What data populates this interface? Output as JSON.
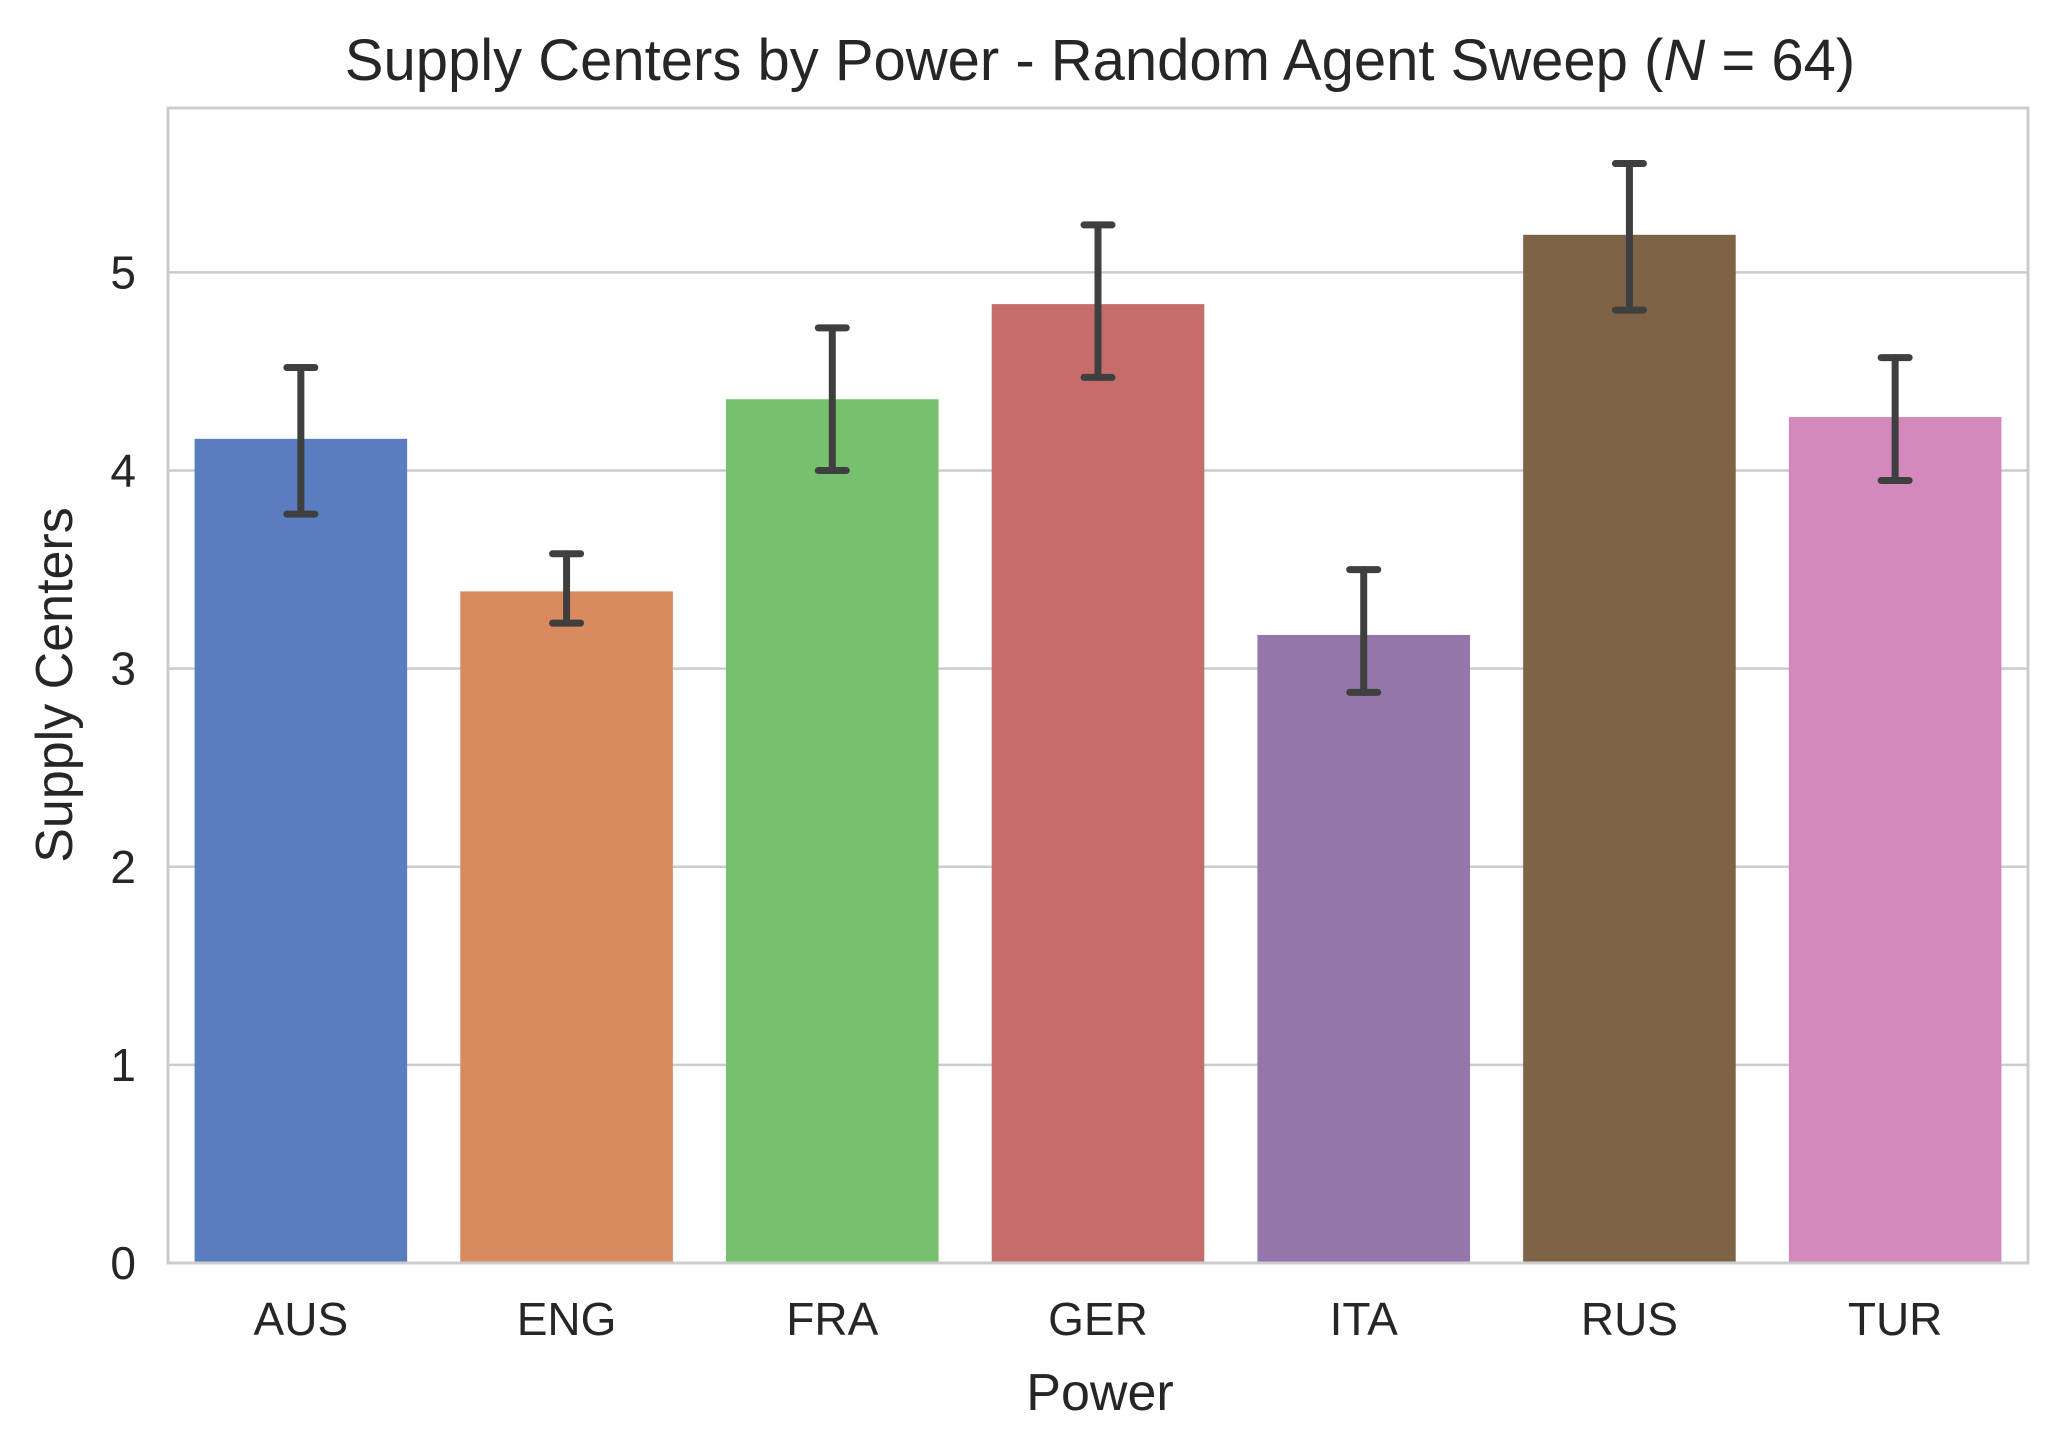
{
  "chart_data": {
    "type": "bar",
    "title_prefix": "Supply Centers by Power - Random Agent Sweep (",
    "title_var": "N",
    "title_rel": " = 64)",
    "xlabel": "Power",
    "ylabel": "Supply Centers",
    "categories": [
      "AUS",
      "ENG",
      "FRA",
      "GER",
      "ITA",
      "RUS",
      "TUR"
    ],
    "values": [
      4.16,
      3.39,
      4.36,
      4.84,
      3.17,
      5.19,
      4.27
    ],
    "error_low": [
      3.78,
      3.23,
      4.0,
      4.47,
      2.88,
      4.81,
      3.95
    ],
    "error_high": [
      4.52,
      3.58,
      4.72,
      5.24,
      3.5,
      5.55,
      4.57
    ],
    "colors": [
      "#5a7dbf",
      "#d98a5f",
      "#77c16e",
      "#c66d6c",
      "#9476ab",
      "#7f6347",
      "#d389bc"
    ],
    "yticks": [
      "0",
      "1",
      "2",
      "3",
      "4",
      "5"
    ],
    "ylim": [
      0,
      5.83
    ],
    "grid": "horizontal"
  }
}
